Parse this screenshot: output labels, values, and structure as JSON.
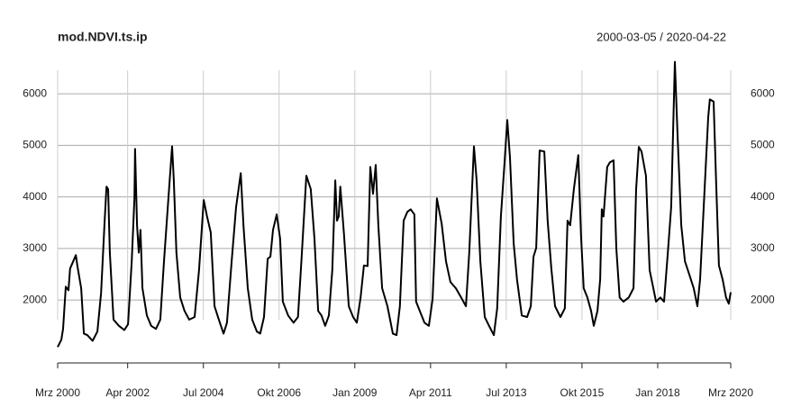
{
  "chart_data": {
    "type": "line",
    "title": "mod.NDVI.ts.ip",
    "subtitle": "2000-03-05 / 2020-04-22",
    "x": [
      2000.17,
      2000.28,
      2000.33,
      2000.41,
      2000.49,
      2000.54,
      2000.71,
      2000.76,
      2000.87,
      2000.95,
      2001.05,
      2001.21,
      2001.35,
      2001.46,
      2001.56,
      2001.62,
      2001.67,
      2001.72,
      2001.83,
      2001.99,
      2002.15,
      2002.26,
      2002.37,
      2002.45,
      2002.47,
      2002.53,
      2002.58,
      2002.63,
      2002.69,
      2002.82,
      2002.95,
      2003.09,
      2003.22,
      2003.33,
      2003.46,
      2003.57,
      2003.62,
      2003.7,
      2003.81,
      2003.94,
      2004.08,
      2004.24,
      2004.37,
      2004.51,
      2004.61,
      2004.72,
      2004.83,
      2004.96,
      2005.1,
      2005.2,
      2005.34,
      2005.47,
      2005.61,
      2005.69,
      2005.82,
      2005.95,
      2006.09,
      2006.19,
      2006.3,
      2006.41,
      2006.49,
      2006.57,
      2006.68,
      2006.78,
      2006.86,
      2007.02,
      2007.18,
      2007.31,
      2007.42,
      2007.56,
      2007.69,
      2007.8,
      2007.91,
      2008.01,
      2008.12,
      2008.23,
      2008.33,
      2008.42,
      2008.47,
      2008.52,
      2008.57,
      2008.68,
      2008.82,
      2008.95,
      2009.06,
      2009.17,
      2009.27,
      2009.38,
      2009.46,
      2009.54,
      2009.62,
      2009.7,
      2009.81,
      2009.97,
      2010.13,
      2010.24,
      2010.34,
      2010.45,
      2010.56,
      2010.66,
      2010.77,
      2010.82,
      2010.93,
      2011.07,
      2011.2,
      2011.31,
      2011.44,
      2011.58,
      2011.71,
      2011.84,
      2012.0,
      2012.16,
      2012.3,
      2012.4,
      2012.54,
      2012.62,
      2012.73,
      2012.86,
      2012.99,
      2013.13,
      2013.23,
      2013.34,
      2013.45,
      2013.53,
      2013.61,
      2013.72,
      2013.82,
      2013.96,
      2014.12,
      2014.23,
      2014.31,
      2014.39,
      2014.49,
      2014.63,
      2014.73,
      2014.84,
      2014.95,
      2015.11,
      2015.24,
      2015.32,
      2015.4,
      2015.51,
      2015.64,
      2015.72,
      2015.8,
      2015.91,
      2016.02,
      2016.1,
      2016.21,
      2016.29,
      2016.34,
      2016.39,
      2016.5,
      2016.58,
      2016.69,
      2016.77,
      2016.87,
      2016.98,
      2017.14,
      2017.28,
      2017.36,
      2017.44,
      2017.52,
      2017.65,
      2017.76,
      2017.87,
      2017.95,
      2018.08,
      2018.19,
      2018.3,
      2018.4,
      2018.51,
      2018.59,
      2018.7,
      2018.81,
      2018.94,
      2019.07,
      2019.18,
      2019.26,
      2019.34,
      2019.42,
      2019.5,
      2019.55,
      2019.66,
      2019.74,
      2019.82,
      2019.93,
      2020.03,
      2020.11,
      2020.17
    ],
    "series": [
      {
        "name": "mod.NDVI.ts.ip",
        "color": "#000000",
        "values": [
          1090,
          1230,
          1440,
          2260,
          2190,
          2610,
          2870,
          2650,
          2230,
          1350,
          1320,
          1210,
          1390,
          2140,
          3450,
          4200,
          4150,
          2920,
          1620,
          1500,
          1420,
          1530,
          2750,
          3970,
          4930,
          3450,
          2920,
          3360,
          2230,
          1700,
          1500,
          1440,
          1620,
          2750,
          3970,
          4980,
          4320,
          2920,
          2050,
          1790,
          1620,
          1670,
          2580,
          3940,
          3620,
          3310,
          1880,
          1620,
          1350,
          1560,
          2750,
          3800,
          4460,
          3450,
          2230,
          1620,
          1390,
          1350,
          1670,
          2800,
          2840,
          3360,
          3660,
          3190,
          1970,
          1700,
          1560,
          1670,
          2840,
          4410,
          4150,
          3190,
          1790,
          1700,
          1500,
          1700,
          2580,
          4320,
          3540,
          3620,
          4200,
          3270,
          1880,
          1670,
          1560,
          2050,
          2670,
          2660,
          4580,
          4060,
          4620,
          3450,
          2230,
          1880,
          1350,
          1320,
          1880,
          3540,
          3710,
          3760,
          3660,
          1970,
          1790,
          1560,
          1500,
          2020,
          3970,
          3480,
          2750,
          2350,
          2230,
          2050,
          1880,
          2920,
          4980,
          4320,
          2750,
          1670,
          1500,
          1320,
          1840,
          3620,
          4670,
          5490,
          4760,
          3100,
          2400,
          1700,
          1670,
          1880,
          2840,
          3010,
          4900,
          4880,
          3540,
          2610,
          1880,
          1670,
          1840,
          3540,
          3450,
          4150,
          4810,
          3270,
          2230,
          2050,
          1790,
          1500,
          1790,
          2400,
          3760,
          3620,
          4580,
          4670,
          4710,
          3010,
          2050,
          1970,
          2050,
          2230,
          4150,
          4970,
          4880,
          4410,
          2580,
          2230,
          1970,
          2050,
          1970,
          2920,
          3800,
          6620,
          5190,
          3450,
          2750,
          2490,
          2230,
          1880,
          2400,
          3450,
          4500,
          5540,
          5890,
          5850,
          4230,
          2670,
          2400,
          2050,
          1930,
          2150
        ]
      }
    ],
    "xlim": [
      2000.17,
      2020.17
    ],
    "ylim": [
      850,
      6700
    ],
    "xticks": [
      {
        "value": 2000.17,
        "label": "Mrz 2000"
      },
      {
        "value": 2002.25,
        "label": "Apr 2002"
      },
      {
        "value": 2004.5,
        "label": "Jul 2004"
      },
      {
        "value": 2006.75,
        "label": "Okt 2006"
      },
      {
        "value": 2009.0,
        "label": "Jan 2009"
      },
      {
        "value": 2011.25,
        "label": "Apr 2011"
      },
      {
        "value": 2013.5,
        "label": "Jul 2013"
      },
      {
        "value": 2015.75,
        "label": "Okt 2015"
      },
      {
        "value": 2018.0,
        "label": "Jan 2018"
      },
      {
        "value": 2020.17,
        "label": "Mrz 2020"
      }
    ],
    "yticks": [
      2000,
      3000,
      4000,
      5000,
      6000
    ],
    "grid": true
  }
}
